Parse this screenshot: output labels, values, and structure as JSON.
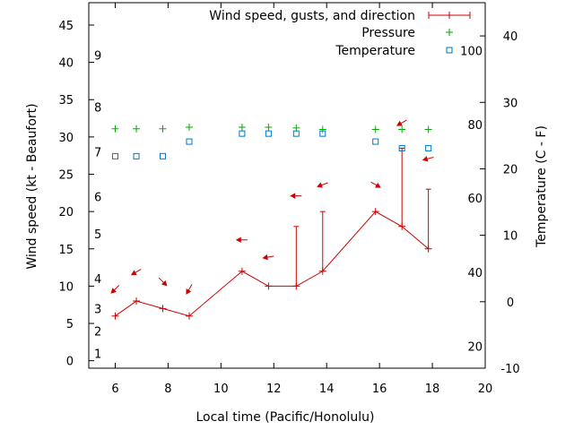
{
  "chart_data": {
    "type": "line",
    "xlabel": "Local time (Pacific/Honolulu)",
    "ylabel": "Wind speed (kt - Beaufort)",
    "y2label": "Temperature (C - F)",
    "xlim": [
      5,
      20
    ],
    "ylim": [
      -1,
      48
    ],
    "y2lim": [
      -10,
      45
    ],
    "x_ticks": [
      6,
      8,
      10,
      12,
      14,
      16,
      18,
      20
    ],
    "y_ticks": [
      0,
      5,
      10,
      15,
      20,
      25,
      30,
      35,
      40,
      45
    ],
    "y2_ticks": [
      -10,
      0,
      10,
      20,
      30,
      40
    ],
    "beaufort_labels": [
      {
        "text": "1",
        "y": 1
      },
      {
        "text": "2",
        "y": 4
      },
      {
        "text": "3",
        "y": 7
      },
      {
        "text": "4",
        "y": 11
      },
      {
        "text": "5",
        "y": 17
      },
      {
        "text": "6",
        "y": 22
      },
      {
        "text": "7",
        "y": 28
      },
      {
        "text": "8",
        "y": 34
      },
      {
        "text": "9",
        "y": 41
      }
    ],
    "fahrenheit_labels": [
      {
        "text": "20",
        "c": -6.7
      },
      {
        "text": "40",
        "c": 4.4
      },
      {
        "text": "60",
        "c": 15.6
      },
      {
        "text": "80",
        "c": 26.7
      },
      {
        "text": "100",
        "c": 37.8
      }
    ],
    "legend": {
      "position": "top-right",
      "entries": [
        {
          "label": "Wind speed, gusts, and direction",
          "color": "#cc0000"
        },
        {
          "label": "Pressure",
          "color": "#00aa00"
        },
        {
          "label": "Temperature",
          "color": "#0077cc"
        }
      ]
    },
    "series": [
      {
        "name": "Wind speed",
        "color": "#cc0000",
        "x": [
          6,
          6.8,
          7.8,
          8.8,
          10.8,
          11.8,
          12.85,
          13.85,
          15.85,
          16.85,
          17.85
        ],
        "values": [
          6,
          8,
          7,
          6,
          12,
          10,
          10,
          12,
          20,
          18,
          15
        ],
        "gusts": [
          null,
          null,
          null,
          null,
          null,
          null,
          18,
          20,
          null,
          28.5,
          23
        ]
      },
      {
        "name": "Wind direction arrows",
        "color": "#cc0000",
        "x": [
          6,
          6.8,
          7.8,
          8.8,
          10.8,
          11.8,
          12.85,
          13.85,
          15.85,
          16.85,
          17.85
        ],
        "arrow_y": [
          9.6,
          11.9,
          10.6,
          9.6,
          16.2,
          13.9,
          22.1,
          23.6,
          23.6,
          31.9,
          27.1
        ],
        "from_direction_deg": [
          45,
          60,
          315,
          30,
          90,
          80,
          90,
          70,
          300,
          60,
          75
        ]
      },
      {
        "name": "Pressure",
        "color": "#00aa00",
        "x": [
          6,
          6.8,
          7.8,
          8.8,
          10.8,
          11.8,
          12.85,
          13.85,
          15.85,
          16.85,
          17.85
        ],
        "values": [
          31.1,
          31.1,
          31.1,
          31.3,
          31.3,
          31.3,
          31.2,
          31.0,
          31.0,
          31.0,
          31.0
        ]
      },
      {
        "name": "Temperature",
        "color": "#0077cc",
        "unit": "C",
        "x": [
          6,
          6.8,
          7.8,
          8.8,
          10.8,
          11.8,
          12.85,
          13.85,
          15.85,
          16.85,
          17.85
        ],
        "values": [
          21.9,
          21.9,
          21.9,
          24.1,
          25.3,
          25.3,
          25.3,
          25.3,
          24.1,
          23.1,
          23.1
        ]
      }
    ]
  }
}
